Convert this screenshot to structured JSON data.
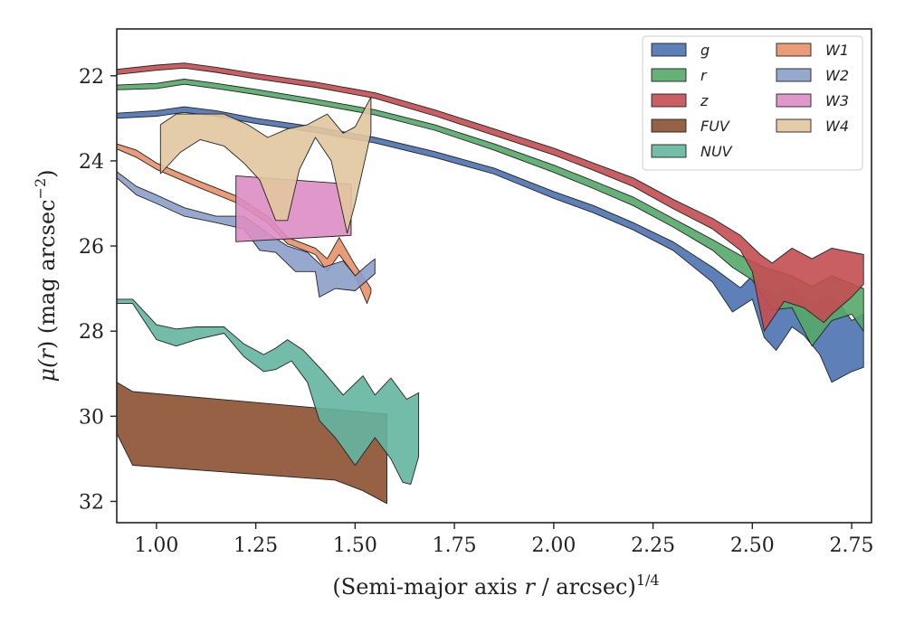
{
  "chart_data": {
    "type": "area",
    "xlabel_main": "(Semi-major axis ",
    "xlabel_var": "r",
    "xlabel_rest": " / arcsec)",
    "xlabel_sup": "1/4",
    "ylabel_main": "μ(",
    "ylabel_var": "r",
    "ylabel_rest": ") (mag arcsec",
    "ylabel_sup": "−2",
    "ylabel_end": ")",
    "xlim": [
      0.9,
      2.8
    ],
    "ylim": [
      32.5,
      20.9
    ],
    "y_inverted": true,
    "xticks": [
      1.0,
      1.25,
      1.5,
      1.75,
      2.0,
      2.25,
      2.5,
      2.75
    ],
    "xtick_labels": [
      "1.00",
      "1.25",
      "1.50",
      "1.75",
      "2.00",
      "2.25",
      "2.50",
      "2.75"
    ],
    "yticks": [
      22,
      24,
      26,
      28,
      30,
      32
    ],
    "ytick_labels": [
      "22",
      "24",
      "26",
      "28",
      "30",
      "32"
    ],
    "grid": false,
    "legend": {
      "placement": "top-right",
      "columns": 2
    },
    "series": [
      {
        "name": "g",
        "color": "#4c72b0",
        "upper": [
          [
            0.9,
            22.88
          ],
          [
            1.0,
            22.82
          ],
          [
            1.07,
            22.73
          ],
          [
            1.15,
            22.82
          ],
          [
            1.25,
            23.0
          ],
          [
            1.4,
            23.2
          ],
          [
            1.55,
            23.45
          ],
          [
            1.7,
            23.78
          ],
          [
            1.85,
            24.17
          ],
          [
            2.0,
            24.72
          ],
          [
            2.1,
            25.05
          ],
          [
            2.2,
            25.45
          ],
          [
            2.3,
            25.9
          ],
          [
            2.4,
            26.5
          ],
          [
            2.47,
            26.98
          ],
          [
            2.5,
            26.7
          ],
          [
            2.55,
            27.15
          ],
          [
            2.6,
            26.9
          ],
          [
            2.65,
            27.35
          ],
          [
            2.7,
            27.1
          ],
          [
            2.75,
            27.75
          ],
          [
            2.78,
            27.6
          ]
        ],
        "lower": [
          [
            0.9,
            23.0
          ],
          [
            1.0,
            22.95
          ],
          [
            1.07,
            22.86
          ],
          [
            1.15,
            22.95
          ],
          [
            1.25,
            23.12
          ],
          [
            1.4,
            23.33
          ],
          [
            1.55,
            23.58
          ],
          [
            1.7,
            23.92
          ],
          [
            1.85,
            24.31
          ],
          [
            2.0,
            24.88
          ],
          [
            2.1,
            25.22
          ],
          [
            2.2,
            25.62
          ],
          [
            2.3,
            26.1
          ],
          [
            2.4,
            26.85
          ],
          [
            2.45,
            27.55
          ],
          [
            2.5,
            27.25
          ],
          [
            2.53,
            28.15
          ],
          [
            2.56,
            28.45
          ],
          [
            2.6,
            27.9
          ],
          [
            2.63,
            28.1
          ],
          [
            2.67,
            28.55
          ],
          [
            2.7,
            29.2
          ],
          [
            2.75,
            28.95
          ],
          [
            2.78,
            28.85
          ]
        ]
      },
      {
        "name": "r",
        "color": "#55a868",
        "upper": [
          [
            0.9,
            22.22
          ],
          [
            1.0,
            22.18
          ],
          [
            1.07,
            22.08
          ],
          [
            1.15,
            22.18
          ],
          [
            1.25,
            22.32
          ],
          [
            1.4,
            22.55
          ],
          [
            1.55,
            22.8
          ],
          [
            1.7,
            23.15
          ],
          [
            1.85,
            23.6
          ],
          [
            2.0,
            24.1
          ],
          [
            2.1,
            24.47
          ],
          [
            2.2,
            24.85
          ],
          [
            2.3,
            25.35
          ],
          [
            2.4,
            25.85
          ],
          [
            2.47,
            26.22
          ],
          [
            2.53,
            26.5
          ],
          [
            2.6,
            26.7
          ],
          [
            2.65,
            26.95
          ],
          [
            2.7,
            26.7
          ],
          [
            2.78,
            27.0
          ]
        ],
        "lower": [
          [
            0.9,
            22.33
          ],
          [
            1.0,
            22.3
          ],
          [
            1.07,
            22.2
          ],
          [
            1.15,
            22.3
          ],
          [
            1.25,
            22.44
          ],
          [
            1.4,
            22.67
          ],
          [
            1.55,
            22.92
          ],
          [
            1.7,
            23.28
          ],
          [
            1.85,
            23.75
          ],
          [
            2.0,
            24.27
          ],
          [
            2.1,
            24.65
          ],
          [
            2.2,
            25.05
          ],
          [
            2.3,
            25.55
          ],
          [
            2.4,
            26.1
          ],
          [
            2.45,
            26.5
          ],
          [
            2.5,
            26.8
          ],
          [
            2.55,
            27.5
          ],
          [
            2.6,
            27.45
          ],
          [
            2.65,
            28.35
          ],
          [
            2.7,
            27.75
          ],
          [
            2.75,
            27.6
          ],
          [
            2.78,
            28.0
          ]
        ]
      },
      {
        "name": "z",
        "color": "#c44e52",
        "upper": [
          [
            0.9,
            21.85
          ],
          [
            1.0,
            21.75
          ],
          [
            1.07,
            21.7
          ],
          [
            1.15,
            21.8
          ],
          [
            1.25,
            21.95
          ],
          [
            1.4,
            22.15
          ],
          [
            1.55,
            22.4
          ],
          [
            1.7,
            22.8
          ],
          [
            1.85,
            23.25
          ],
          [
            2.0,
            23.7
          ],
          [
            2.1,
            24.05
          ],
          [
            2.2,
            24.4
          ],
          [
            2.3,
            24.9
          ],
          [
            2.4,
            25.35
          ],
          [
            2.47,
            25.75
          ],
          [
            2.52,
            26.2
          ],
          [
            2.55,
            26.4
          ],
          [
            2.6,
            26.05
          ],
          [
            2.65,
            26.3
          ],
          [
            2.7,
            26.05
          ],
          [
            2.78,
            26.2
          ]
        ],
        "lower": [
          [
            0.9,
            21.97
          ],
          [
            1.0,
            21.87
          ],
          [
            1.07,
            21.82
          ],
          [
            1.15,
            21.92
          ],
          [
            1.25,
            22.07
          ],
          [
            1.4,
            22.27
          ],
          [
            1.55,
            22.53
          ],
          [
            1.7,
            22.94
          ],
          [
            1.85,
            23.4
          ],
          [
            2.0,
            23.86
          ],
          [
            2.1,
            24.22
          ],
          [
            2.2,
            24.6
          ],
          [
            2.3,
            25.12
          ],
          [
            2.4,
            25.6
          ],
          [
            2.47,
            26.1
          ],
          [
            2.5,
            26.6
          ],
          [
            2.53,
            28.0
          ],
          [
            2.58,
            27.3
          ],
          [
            2.63,
            27.45
          ],
          [
            2.68,
            27.8
          ],
          [
            2.7,
            27.6
          ],
          [
            2.75,
            27.2
          ],
          [
            2.78,
            26.9
          ]
        ]
      },
      {
        "name": "FUV",
        "color": "#8c5031",
        "upper": [
          [
            0.9,
            29.2
          ],
          [
            0.94,
            29.42
          ],
          [
            1.58,
            29.95
          ]
        ],
        "lower": [
          [
            0.9,
            30.4
          ],
          [
            0.94,
            31.15
          ],
          [
            1.45,
            31.5
          ],
          [
            1.52,
            31.75
          ],
          [
            1.58,
            32.05
          ]
        ]
      },
      {
        "name": "NUV",
        "color": "#64b5a0",
        "upper": [
          [
            0.9,
            27.25
          ],
          [
            0.94,
            27.25
          ],
          [
            1.0,
            27.85
          ],
          [
            1.05,
            27.95
          ],
          [
            1.1,
            27.9
          ],
          [
            1.17,
            27.9
          ],
          [
            1.22,
            28.3
          ],
          [
            1.27,
            28.55
          ],
          [
            1.3,
            28.4
          ],
          [
            1.33,
            28.2
          ],
          [
            1.37,
            28.45
          ],
          [
            1.42,
            28.95
          ],
          [
            1.47,
            29.5
          ],
          [
            1.52,
            29.05
          ],
          [
            1.55,
            29.5
          ],
          [
            1.59,
            29.1
          ],
          [
            1.63,
            29.6
          ],
          [
            1.66,
            29.45
          ]
        ],
        "lower": [
          [
            0.9,
            27.35
          ],
          [
            0.94,
            27.35
          ],
          [
            1.0,
            28.2
          ],
          [
            1.05,
            28.35
          ],
          [
            1.1,
            28.2
          ],
          [
            1.17,
            28.05
          ],
          [
            1.22,
            28.6
          ],
          [
            1.27,
            28.95
          ],
          [
            1.3,
            28.9
          ],
          [
            1.34,
            28.7
          ],
          [
            1.38,
            29.2
          ],
          [
            1.41,
            30.1
          ],
          [
            1.45,
            30.5
          ],
          [
            1.5,
            31.15
          ],
          [
            1.55,
            30.5
          ],
          [
            1.59,
            31.0
          ],
          [
            1.62,
            31.55
          ],
          [
            1.64,
            31.6
          ],
          [
            1.66,
            30.95
          ]
        ]
      },
      {
        "name": "W1",
        "color": "#e8916a",
        "upper": [
          [
            0.9,
            23.6
          ],
          [
            0.95,
            23.75
          ],
          [
            1.0,
            24.05
          ],
          [
            1.1,
            24.45
          ],
          [
            1.2,
            24.82
          ],
          [
            1.28,
            25.3
          ],
          [
            1.33,
            25.8
          ],
          [
            1.4,
            26.05
          ],
          [
            1.43,
            26.3
          ],
          [
            1.46,
            25.8
          ],
          [
            1.5,
            26.45
          ],
          [
            1.53,
            26.85
          ],
          [
            1.54,
            27.0
          ]
        ],
        "lower": [
          [
            0.9,
            23.72
          ],
          [
            0.95,
            23.92
          ],
          [
            1.0,
            24.2
          ],
          [
            1.1,
            24.6
          ],
          [
            1.2,
            24.98
          ],
          [
            1.28,
            25.45
          ],
          [
            1.33,
            25.95
          ],
          [
            1.4,
            26.2
          ],
          [
            1.43,
            26.6
          ],
          [
            1.46,
            26.2
          ],
          [
            1.5,
            26.7
          ],
          [
            1.53,
            27.35
          ],
          [
            1.54,
            27.1
          ]
        ]
      },
      {
        "name": "W2",
        "color": "#8c9ec9",
        "upper": [
          [
            0.9,
            24.25
          ],
          [
            0.95,
            24.6
          ],
          [
            1.0,
            24.8
          ],
          [
            1.07,
            25.1
          ],
          [
            1.15,
            25.3
          ],
          [
            1.22,
            25.3
          ],
          [
            1.28,
            25.7
          ],
          [
            1.33,
            26.0
          ],
          [
            1.38,
            26.15
          ],
          [
            1.42,
            26.5
          ],
          [
            1.47,
            26.35
          ],
          [
            1.5,
            26.7
          ],
          [
            1.53,
            26.45
          ],
          [
            1.55,
            26.3
          ]
        ],
        "lower": [
          [
            0.9,
            24.4
          ],
          [
            0.95,
            24.8
          ],
          [
            1.0,
            25.0
          ],
          [
            1.07,
            25.3
          ],
          [
            1.15,
            25.45
          ],
          [
            1.22,
            25.6
          ],
          [
            1.26,
            26.1
          ],
          [
            1.3,
            26.15
          ],
          [
            1.35,
            26.6
          ],
          [
            1.4,
            26.6
          ],
          [
            1.41,
            27.2
          ],
          [
            1.45,
            27.0
          ],
          [
            1.5,
            27.05
          ],
          [
            1.55,
            26.65
          ]
        ]
      },
      {
        "name": "W3",
        "color": "#dc8dc3",
        "upper": [
          [
            1.2,
            24.35
          ],
          [
            1.49,
            24.55
          ]
        ],
        "lower": [
          [
            1.2,
            25.9
          ],
          [
            1.49,
            25.75
          ]
        ]
      },
      {
        "name": "W4",
        "color": "#e2c69e",
        "upper": [
          [
            1.01,
            23.15
          ],
          [
            1.05,
            22.9
          ],
          [
            1.17,
            22.9
          ],
          [
            1.23,
            23.15
          ],
          [
            1.28,
            23.45
          ],
          [
            1.33,
            23.25
          ],
          [
            1.38,
            23.15
          ],
          [
            1.43,
            22.9
          ],
          [
            1.47,
            23.35
          ],
          [
            1.5,
            23.2
          ],
          [
            1.54,
            22.5
          ]
        ],
        "lower": [
          [
            1.01,
            24.3
          ],
          [
            1.06,
            23.8
          ],
          [
            1.11,
            23.5
          ],
          [
            1.17,
            23.65
          ],
          [
            1.22,
            24.05
          ],
          [
            1.26,
            24.45
          ],
          [
            1.3,
            25.4
          ],
          [
            1.33,
            25.4
          ],
          [
            1.36,
            24.2
          ],
          [
            1.4,
            23.45
          ],
          [
            1.44,
            24.0
          ],
          [
            1.48,
            25.7
          ],
          [
            1.5,
            25.0
          ],
          [
            1.54,
            23.35
          ]
        ]
      }
    ]
  }
}
